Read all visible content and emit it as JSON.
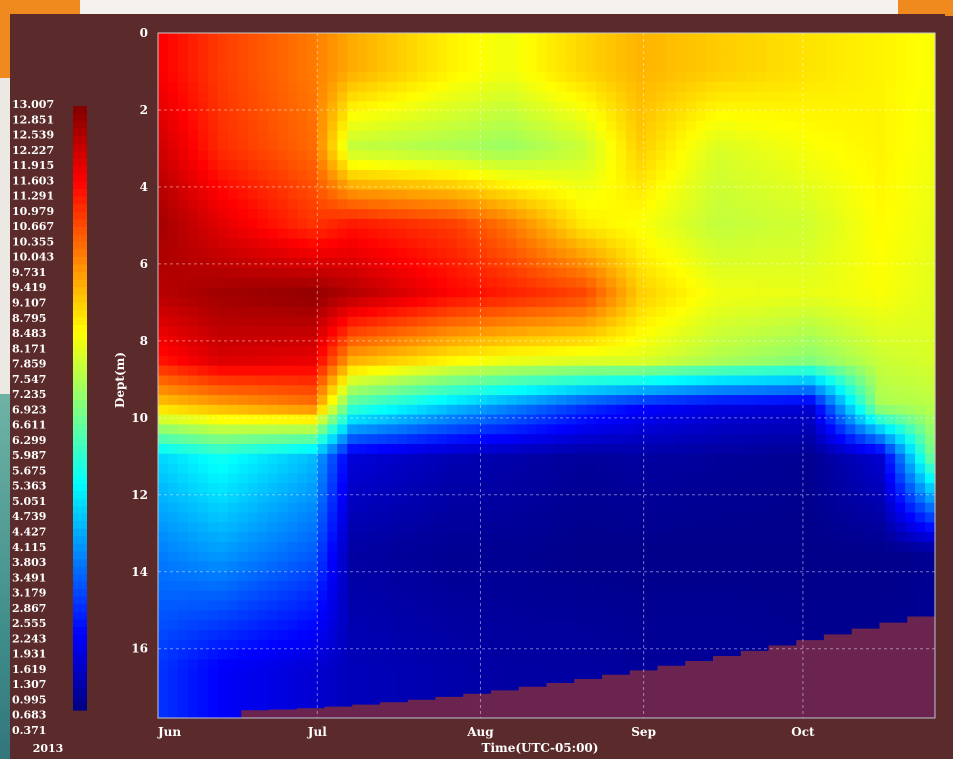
{
  "chart_data": {
    "type": "heatmap",
    "title": "",
    "xlabel": "Time(UTC-05:00)",
    "ylabel": "Dept(m)",
    "year_label": "2013",
    "x_ticks": [
      "Jun",
      "Jul",
      "Aug",
      "Sep",
      "Oct"
    ],
    "y_ticks": [
      0,
      2,
      4,
      6,
      8,
      10,
      12,
      14,
      16
    ],
    "ylim": [
      0,
      17.8
    ],
    "y_inverted": true,
    "grid": true,
    "colorbar": {
      "position": "left",
      "colormap": "jet",
      "min": 0.371,
      "max": 13.007,
      "labels": [
        "13.007",
        "12.851",
        "12.539",
        "12.227",
        "11.915",
        "11.603",
        "11.291",
        "10.979",
        "10.667",
        "10.355",
        "10.043",
        "9.731",
        "9.419",
        "9.107",
        "8.795",
        "8.483",
        "8.171",
        "7.859",
        "7.547",
        "7.235",
        "6.923",
        "6.611",
        "6.299",
        "5.987",
        "5.675",
        "5.363",
        "5.051",
        "4.739",
        "4.427",
        "4.115",
        "3.803",
        "3.491",
        "3.179",
        "2.867",
        "2.555",
        "2.243",
        "1.931",
        "1.619",
        "1.307",
        "0.995",
        "0.683",
        "0.371"
      ]
    },
    "series": [
      {
        "depth": 1,
        "values": [
          11.5,
          10.7,
          9.9,
          9.3,
          8.4,
          8.1,
          8.8,
          9.2,
          8.9,
          8.6,
          8.4,
          8.2
        ]
      },
      {
        "depth": 3,
        "values": [
          12.1,
          10.9,
          10.1,
          7.5,
          7.2,
          7.0,
          7.6,
          8.9,
          7.8,
          8.2,
          8.4,
          8.1
        ]
      },
      {
        "depth": 5,
        "values": [
          12.6,
          11.8,
          10.8,
          11.2,
          10.7,
          10.0,
          8.5,
          8.2,
          7.5,
          7.7,
          8.3,
          8.0
        ]
      },
      {
        "depth": 6.8,
        "values": [
          12.3,
          12.6,
          12.8,
          12.4,
          11.4,
          11.1,
          10.6,
          8.9,
          8.1,
          8.0,
          8.2,
          7.9
        ]
      },
      {
        "depth": 8.5,
        "values": [
          11.2,
          11.9,
          11.7,
          9.3,
          8.4,
          8.1,
          7.9,
          7.9,
          7.3,
          6.8,
          7.6,
          7.8
        ]
      },
      {
        "depth": 9.7,
        "values": [
          8.8,
          9.3,
          9.9,
          5.9,
          4.4,
          3.7,
          2.6,
          2.0,
          1.6,
          1.4,
          7.2,
          7.4
        ]
      },
      {
        "depth": 11,
        "values": [
          4.6,
          5.3,
          4.3,
          1.5,
          1.0,
          0.9,
          0.7,
          0.8,
          0.7,
          0.6,
          1.4,
          6.9
        ]
      },
      {
        "depth": 13.5,
        "values": [
          3.5,
          3.9,
          3.1,
          0.8,
          0.6,
          0.6,
          0.5,
          0.5,
          0.5,
          0.5,
          0.5,
          0.6
        ]
      },
      {
        "depth": 16.5,
        "values": [
          2.6,
          1.9,
          1.4,
          1.1,
          0.9,
          0.8,
          0.8,
          0.7,
          0.7,
          0.6,
          0.6,
          0.6
        ]
      }
    ],
    "x_positions": [
      0.0,
      0.08,
      0.2,
      0.25,
      0.38,
      0.45,
      0.55,
      0.62,
      0.72,
      0.84,
      0.93,
      1.0
    ],
    "no_data_color": "#6b2450"
  }
}
